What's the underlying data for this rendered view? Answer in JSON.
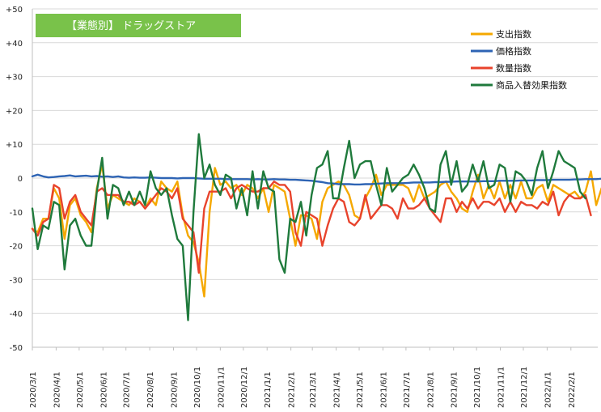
{
  "chart_data": {
    "type": "line",
    "title": "【業態別】 ドラッグストア",
    "title_bg": "#79c24a",
    "xlabel": "",
    "ylabel": "",
    "ylim": [
      -50,
      50
    ],
    "yticks": [
      50,
      40,
      30,
      20,
      10,
      0,
      -10,
      -20,
      -30,
      -40,
      -50
    ],
    "ytick_labels": [
      "+50",
      "+40",
      "+30",
      "+20",
      "+10",
      "0",
      "-10",
      "-20",
      "-30",
      "-40",
      "-50"
    ],
    "grid": "horizontal",
    "legend_position": "top-right",
    "x_ticks": [
      "2020/3/1",
      "2020/4/1",
      "2020/5/1",
      "2020/6/1",
      "2020/7/1",
      "2020/8/1",
      "2020/9/1",
      "2020/10/1",
      "2020/11/1",
      "2020/12/1",
      "2021/1/1",
      "2021/2/1",
      "2021/3/1",
      "2021/4/1",
      "2021/5/1",
      "2021/6/1",
      "2021/7/1",
      "2021/8/1",
      "2021/9/1",
      "2021/10/1",
      "2021/11/1",
      "2021/12/1",
      "2022/1/1",
      "2022/2/1"
    ],
    "x_start": "2020-03-01",
    "x_end": "2022-03-08",
    "weekly_interval_days": 7,
    "series": [
      {
        "name": "支出指数",
        "color": "#f5a800",
        "values": [
          -15,
          -16,
          -12,
          -12,
          -3,
          -6,
          -18,
          -8,
          -6,
          -11,
          -13,
          -16,
          -3,
          4,
          -9,
          -5,
          -6,
          -7,
          -8,
          -6,
          -7,
          -9,
          -6,
          -8,
          -1,
          -3,
          -4,
          -1,
          -11,
          -17,
          -19,
          -25,
          -35,
          -10,
          3,
          -2,
          -1,
          -3,
          -2,
          -5,
          -2,
          -3,
          -6,
          -3,
          -10,
          -2,
          -3,
          -4,
          -12,
          -20,
          -11,
          -11,
          -12,
          -18,
          -7,
          -3,
          -2,
          -1,
          -2,
          -5,
          -11,
          -12,
          -6,
          -3,
          1,
          -5,
          -2,
          -2,
          -2,
          -2,
          -3,
          -7,
          -2,
          -6,
          -5,
          -4,
          -2,
          -1,
          -4,
          -6,
          -9,
          -10,
          -4,
          1,
          -6,
          -2,
          -6,
          -1,
          -6,
          -2,
          -6,
          -1,
          -6,
          -6,
          -3,
          -2,
          -7,
          -2,
          -3,
          -4,
          -5,
          -4,
          -6,
          -4,
          2,
          -8,
          -3,
          -1,
          1,
          0,
          -1,
          -6,
          -10
        ]
      },
      {
        "name": "価格指数",
        "color": "#2e64b4",
        "values": [
          0.5,
          1,
          0.5,
          0.2,
          0.3,
          0.5,
          0.6,
          0.8,
          0.5,
          0.6,
          0.7,
          0.5,
          0.6,
          0.4,
          0.5,
          0.3,
          0.5,
          0.2,
          0.1,
          0.2,
          0.1,
          0.1,
          0.2,
          0.1,
          0,
          0,
          0,
          -0.1,
          0,
          0,
          0,
          -0.1,
          -0.2,
          -0.2,
          -0.2,
          -0.2,
          -0.3,
          -0.3,
          -0.3,
          -0.3,
          -0.3,
          -0.4,
          -0.3,
          -0.4,
          -0.4,
          -0.3,
          -0.4,
          -0.4,
          -0.5,
          -0.5,
          -0.6,
          -0.7,
          -0.8,
          -1,
          -1.2,
          -1.5,
          -1.6,
          -1.8,
          -1.8,
          -1.8,
          -1.9,
          -1.9,
          -1.8,
          -1.8,
          -1.7,
          -1.6,
          -1.5,
          -1.5,
          -1.5,
          -1.5,
          -1.4,
          -1.3,
          -1.3,
          -1.3,
          -1.3,
          -1.2,
          -1.2,
          -1.1,
          -1.1,
          -1,
          -1,
          -1,
          -1,
          -1,
          -0.9,
          -0.9,
          -0.9,
          -0.8,
          -0.8,
          -0.8,
          -0.8,
          -0.7,
          -0.7,
          -0.7,
          -0.6,
          -0.6,
          -0.6,
          -0.5,
          -0.5,
          -0.5,
          -0.5,
          -0.4,
          -0.4,
          -0.3,
          -0.3,
          -0.3,
          -0.2,
          -0.2,
          -0.1,
          0,
          0.2,
          0.3,
          0.2
        ]
      },
      {
        "name": "数量指数",
        "color": "#e8432c",
        "values": [
          -15,
          -17,
          -13,
          -12,
          -2,
          -3,
          -12,
          -7,
          -5,
          -10,
          -12,
          -14,
          -4,
          -3,
          -5,
          -5,
          -5,
          -7,
          -7,
          -8,
          -7,
          -9,
          -7,
          -5,
          -3,
          -4,
          -6,
          -3,
          -12,
          -14,
          -16,
          -28,
          -9,
          -4,
          -4,
          -4,
          -3,
          -6,
          -3,
          -2,
          -3,
          -4,
          -4,
          -3,
          -3,
          -1,
          -2,
          -2,
          -4,
          -16,
          -20,
          -10,
          -11,
          -12,
          -20,
          -14,
          -9,
          -6,
          -7,
          -13,
          -14,
          -12,
          -5,
          -12,
          -10,
          -8,
          -8,
          -9,
          -12,
          -6,
          -9,
          -9,
          -8,
          -6,
          -9,
          -11,
          -13,
          -6,
          -6,
          -10,
          -7,
          -9,
          -6,
          -9,
          -7,
          -7,
          -8,
          -6,
          -10,
          -7,
          -10,
          -7,
          -8,
          -8,
          -9,
          -7,
          -8,
          -4,
          -11,
          -7,
          -5,
          -6,
          -6,
          -5,
          -11
        ]
      },
      {
        "name": "商品入替効果指数",
        "color": "#1f7a3c",
        "values": [
          -9,
          -21,
          -14,
          -15,
          -7,
          -8,
          -27,
          -14,
          -12,
          -17,
          -20,
          -20,
          -4,
          6,
          -12,
          -2,
          -3,
          -8,
          -4,
          -8,
          -4,
          -8,
          2,
          -3,
          -5,
          -3,
          -11,
          -18,
          -20,
          -42,
          -10,
          13,
          0,
          4,
          -2,
          -5,
          1,
          0,
          -9,
          -3,
          -11,
          2,
          -9,
          2,
          -3,
          -4,
          -24,
          -28,
          -12,
          -13,
          -7,
          -17,
          -5,
          3,
          4,
          8,
          -6,
          -6,
          3,
          11,
          0,
          4,
          5,
          5,
          -2,
          -8,
          3,
          -4,
          -2,
          0,
          1,
          4,
          1,
          -3,
          -9,
          -10,
          4,
          8,
          -2,
          5,
          -4,
          -2,
          4,
          -1,
          5,
          -3,
          -2,
          4,
          3,
          -7,
          2,
          1,
          -1,
          -5,
          3,
          8,
          -3,
          2,
          8,
          5,
          4,
          3,
          -4,
          -6
        ]
      }
    ]
  }
}
